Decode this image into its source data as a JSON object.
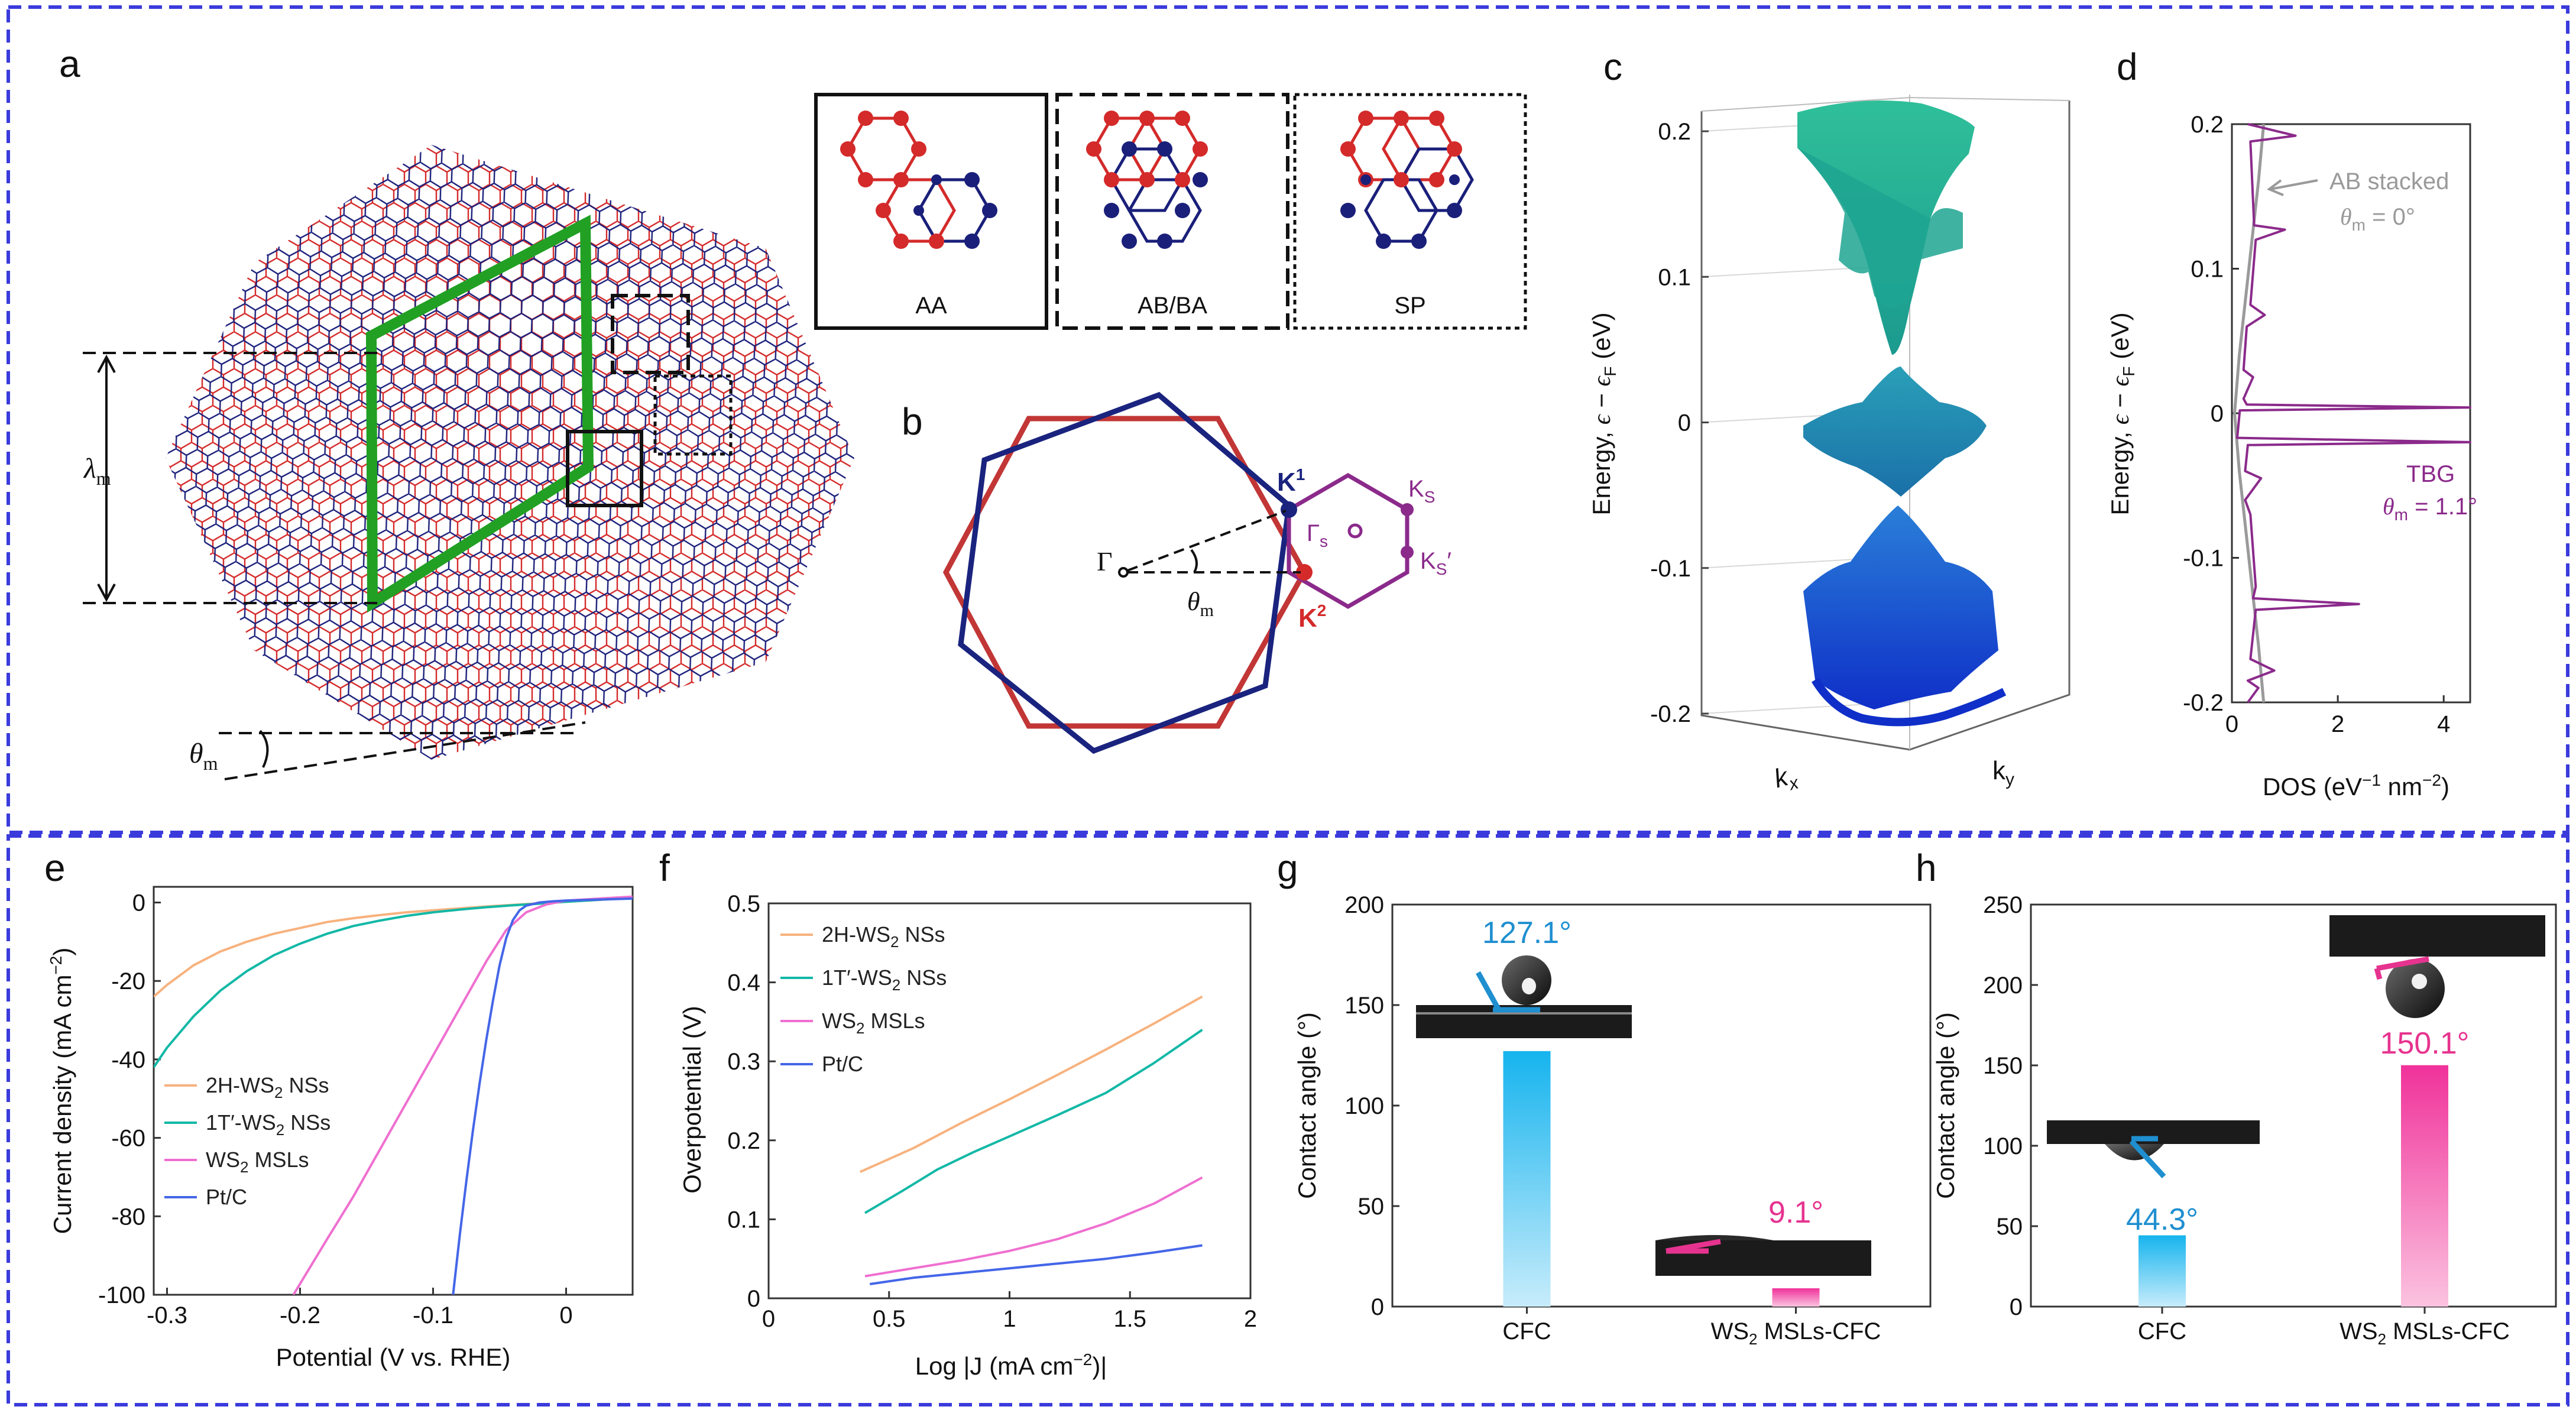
{
  "colors": {
    "border_dash": "#3b3bdc",
    "red": "#d42a2a",
    "navy": "#1a1f7a",
    "green": "#21a023",
    "purple": "#8b2a8b",
    "orange": "#f7b27e",
    "teal": "#12b8a6",
    "pink": "#ef6fd0",
    "blue": "#4466e8",
    "cyan_bar": "#2ab8ef",
    "pink_bar": "#f0329a",
    "g_label": "#1f8fd0",
    "pink_label": "#e6338f",
    "gray": "#9a9a9a"
  },
  "panels": {
    "a": {
      "letter": "a",
      "lambda": "λ",
      "lambda_sub": "m",
      "theta": "θ",
      "theta_sub": "m",
      "stackings": [
        "AA",
        "AB/BA",
        "SP"
      ]
    },
    "b": {
      "letter": "b",
      "gamma": "Γ",
      "gamma_s": "Γ",
      "gamma_s_sub": "s",
      "k1": "K",
      "k1_sup": "1",
      "k2": "K",
      "k2_sup": "2",
      "ks": "K",
      "ks_sub": "S",
      "ksp": "K",
      "ksp_sub": "S",
      "ksp_prime": "′",
      "theta": "θ",
      "theta_sub": "m"
    }
  },
  "chart_data": [
    {
      "id": "c",
      "letter": "c",
      "type": "surface",
      "title": "",
      "ylabel": "Energy, ϵ − ϵF (eV)",
      "ylabel_parts": [
        "Energy, ",
        "ϵ",
        " − ",
        "ϵ",
        "F",
        " (eV)"
      ],
      "yticks": [
        0.2,
        0.1,
        0,
        -0.1,
        -0.2
      ],
      "ylim": [
        -0.2,
        0.2
      ],
      "xlabel": "k",
      "xlabel_sub": "x",
      "zlabel": "k",
      "zlabel_sub": "y"
    },
    {
      "id": "d",
      "letter": "d",
      "type": "line",
      "ylabel_parts": [
        "Energy, ",
        "ϵ",
        " − ",
        "ϵ",
        "F",
        " (eV)"
      ],
      "xlabel_parts": [
        "DOS (eV",
        "−1",
        " nm",
        "−2",
        ")"
      ],
      "xlim": [
        0,
        4.5
      ],
      "ylim": [
        -0.2,
        0.2
      ],
      "xticks": [
        0,
        2,
        4
      ],
      "yticks": [
        0.2,
        0.1,
        0,
        -0.1,
        -0.2
      ],
      "annotations": {
        "ab": "AB stacked",
        "ab_theta": "θ",
        "ab_theta_sub": "m",
        "ab_theta_val": " = 0°",
        "tbg": "TBG",
        "tbg_theta": "θ",
        "tbg_theta_sub": "m",
        "tbg_theta_val": " = 1.1°"
      },
      "series": [
        {
          "name": "AB stacked",
          "color": "#9a9a9a",
          "x": [
            0.6,
            0.5,
            0.38,
            0.26,
            0.14,
            0.05,
            0.14,
            0.26,
            0.38,
            0.5,
            0.6
          ],
          "y": [
            0.2,
            0.16,
            0.12,
            0.08,
            0.04,
            0.0,
            -0.04,
            -0.08,
            -0.12,
            -0.16,
            -0.2
          ]
        },
        {
          "name": "TBG",
          "color": "#8b2a8b",
          "x": [
            0.3,
            1.2,
            0.35,
            0.42,
            1.0,
            0.45,
            0.35,
            0.62,
            0.28,
            0.22,
            0.4,
            0.22,
            0.28,
            4.5,
            0.15,
            0.1,
            4.5,
            0.3,
            0.25,
            0.55,
            0.25,
            0.35,
            0.45,
            0.4,
            2.4,
            0.45,
            0.35,
            0.8,
            0.3,
            0.5,
            0.3
          ],
          "y": [
            0.2,
            0.192,
            0.188,
            0.13,
            0.127,
            0.12,
            0.075,
            0.068,
            0.06,
            0.03,
            0.025,
            0.01,
            0.006,
            0.004,
            0.002,
            -0.017,
            -0.02,
            -0.022,
            -0.04,
            -0.045,
            -0.06,
            -0.07,
            -0.12,
            -0.128,
            -0.132,
            -0.136,
            -0.17,
            -0.178,
            -0.185,
            -0.19,
            -0.2
          ]
        }
      ]
    },
    {
      "id": "e",
      "letter": "e",
      "type": "line",
      "xlabel": "Potential (V vs. RHE)",
      "ylabel_parts": [
        "Current density (mA cm",
        "−2",
        ")"
      ],
      "xlim": [
        -0.31,
        0.05
      ],
      "ylim": [
        -100,
        4
      ],
      "xticks": [
        -0.3,
        -0.2,
        -0.1,
        0
      ],
      "xtick_labels": [
        "-0.3",
        "-0.2",
        "-0.1",
        "0"
      ],
      "yticks": [
        0,
        -20,
        -40,
        -60,
        -80,
        -100
      ],
      "ytick_labels": [
        "0",
        "-20",
        "-40",
        "-60",
        "-80",
        "-100"
      ],
      "series": [
        {
          "name": "2H-WS2 NSs",
          "label_parts": [
            "2H-WS",
            "2",
            " NSs"
          ],
          "color": "#f7b27e",
          "x": [
            -0.31,
            -0.3,
            -0.28,
            -0.26,
            -0.24,
            -0.22,
            -0.2,
            -0.18,
            -0.16,
            -0.14,
            -0.12,
            -0.1,
            -0.08,
            -0.06,
            -0.04,
            -0.02,
            0.0,
            0.02,
            0.05
          ],
          "y": [
            -24,
            -21,
            -16,
            -12.5,
            -10,
            -8,
            -6.5,
            -5,
            -4,
            -3.2,
            -2.5,
            -2,
            -1.5,
            -1,
            -0.6,
            -0.2,
            0.2,
            0.6,
            1.2
          ]
        },
        {
          "name": "1T′-WS2 NSs",
          "label_parts": [
            "1T′-WS",
            "2",
            " NSs"
          ],
          "color": "#12b8a6",
          "x": [
            -0.31,
            -0.3,
            -0.28,
            -0.26,
            -0.24,
            -0.22,
            -0.2,
            -0.18,
            -0.16,
            -0.14,
            -0.12,
            -0.1,
            -0.08,
            -0.06,
            -0.04,
            -0.02,
            0.0,
            0.02,
            0.05
          ],
          "y": [
            -42,
            -37,
            -29,
            -22.5,
            -17.5,
            -13.5,
            -10.5,
            -8,
            -6,
            -4.6,
            -3.4,
            -2.5,
            -1.8,
            -1.2,
            -0.7,
            -0.3,
            0.2,
            0.6,
            1.2
          ]
        },
        {
          "name": "WS2 MSLs",
          "label_parts": [
            "WS",
            "2",
            " MSLs"
          ],
          "color": "#ef6fd0",
          "x": [
            -0.205,
            -0.18,
            -0.16,
            -0.14,
            -0.12,
            -0.1,
            -0.08,
            -0.06,
            -0.045,
            -0.03,
            -0.015,
            0.0,
            0.05
          ],
          "y": [
            -100,
            -86,
            -75,
            -63,
            -51,
            -39,
            -27,
            -15,
            -7,
            -2.5,
            -0.5,
            0.5,
            1.5
          ]
        },
        {
          "name": "Pt/C",
          "label_parts": [
            "Pt/C",
            "",
            ""
          ],
          "color": "#4466e8",
          "x": [
            -0.085,
            -0.08,
            -0.075,
            -0.07,
            -0.065,
            -0.06,
            -0.055,
            -0.05,
            -0.045,
            -0.04,
            -0.035,
            -0.03,
            -0.02,
            -0.01,
            0.0,
            0.05
          ],
          "y": [
            -100,
            -85,
            -71,
            -58,
            -46,
            -35,
            -25,
            -16,
            -9,
            -4.5,
            -2,
            -0.8,
            0,
            0.3,
            0.5,
            1
          ]
        }
      ]
    },
    {
      "id": "f",
      "letter": "f",
      "type": "line",
      "xlabel_parts": [
        "Log |J (mA cm",
        "−2",
        ")|"
      ],
      "ylabel": "Overpotential (V)",
      "xlim": [
        0,
        2
      ],
      "ylim": [
        0,
        0.5
      ],
      "xticks": [
        0,
        0.5,
        1,
        1.5,
        2
      ],
      "xtick_labels": [
        "0",
        "0.5",
        "1",
        "1.5",
        "2"
      ],
      "yticks": [
        0,
        0.1,
        0.2,
        0.3,
        0.4,
        0.5
      ],
      "ytick_labels": [
        "0",
        "0.1",
        "0.2",
        "0.3",
        "0.4",
        "0.5"
      ],
      "series": [
        {
          "name": "2H-WS2 NSs",
          "label_parts": [
            "2H-WS",
            "2",
            " NSs"
          ],
          "color": "#f7b27e",
          "x": [
            0.38,
            0.6,
            0.8,
            1.0,
            1.2,
            1.4,
            1.6,
            1.8
          ],
          "y": [
            0.16,
            0.19,
            0.222,
            0.252,
            0.283,
            0.315,
            0.348,
            0.382
          ]
        },
        {
          "name": "1T′-WS2 NSs",
          "label_parts": [
            "1T′-WS",
            "2",
            " NSs"
          ],
          "color": "#12b8a6",
          "x": [
            0.4,
            0.55,
            0.7,
            0.85,
            1.0,
            1.2,
            1.4,
            1.6,
            1.8
          ],
          "y": [
            0.108,
            0.135,
            0.163,
            0.185,
            0.205,
            0.232,
            0.26,
            0.298,
            0.34
          ]
        },
        {
          "name": "WS2 MSLs",
          "label_parts": [
            "WS",
            "2",
            " MSLs"
          ],
          "color": "#ef6fd0",
          "x": [
            0.4,
            0.6,
            0.8,
            1.0,
            1.2,
            1.4,
            1.6,
            1.8
          ],
          "y": [
            0.028,
            0.038,
            0.048,
            0.06,
            0.075,
            0.095,
            0.12,
            0.153
          ]
        },
        {
          "name": "Pt/C",
          "label_parts": [
            "Pt/C",
            "",
            ""
          ],
          "color": "#4466e8",
          "x": [
            0.42,
            0.6,
            0.8,
            1.0,
            1.2,
            1.4,
            1.6,
            1.8
          ],
          "y": [
            0.018,
            0.026,
            0.032,
            0.038,
            0.044,
            0.05,
            0.058,
            0.067
          ]
        }
      ]
    },
    {
      "id": "g",
      "letter": "g",
      "type": "bar",
      "ylabel": "Contact angle (°)",
      "ylim": [
        0,
        200
      ],
      "yticks": [
        0,
        50,
        100,
        150,
        200
      ],
      "ytick_labels": [
        "0",
        "50",
        "100",
        "150",
        "200"
      ],
      "categories": [
        "CFC",
        "WS2 MSLs-CFC"
      ],
      "category_parts": [
        [
          "CFC",
          "",
          ""
        ],
        [
          "WS",
          "2",
          " MSLs-CFC"
        ]
      ],
      "values": [
        127.1,
        9.1
      ],
      "value_labels": [
        "127.1°",
        "9.1°"
      ],
      "colors": [
        "#2ab8ef",
        "#f0329a"
      ]
    },
    {
      "id": "h",
      "letter": "h",
      "type": "bar",
      "ylabel": "Contact angle (°)",
      "ylim": [
        0,
        250
      ],
      "yticks": [
        0,
        50,
        100,
        150,
        200,
        250
      ],
      "ytick_labels": [
        "0",
        "50",
        "100",
        "150",
        "200",
        "250"
      ],
      "categories": [
        "CFC",
        "WS2 MSLs-CFC"
      ],
      "category_parts": [
        [
          "CFC",
          "",
          ""
        ],
        [
          "WS",
          "2",
          " MSLs-CFC"
        ]
      ],
      "values": [
        44.3,
        150.1
      ],
      "value_labels": [
        "44.3°",
        "150.1°"
      ],
      "colors": [
        "#2ab8ef",
        "#f0329a"
      ]
    }
  ]
}
